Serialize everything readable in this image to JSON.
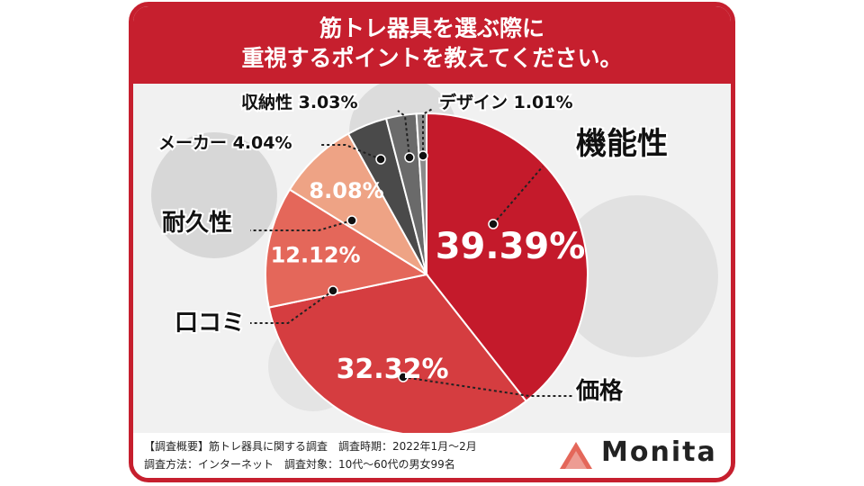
{
  "header": {
    "title_line1": "筋トレ器具を選ぶ際に",
    "title_line2": "重視するポイントを教えてください。"
  },
  "chart_data": {
    "type": "pie",
    "title": "筋トレ器具を選ぶ際に重視するポイントを教えてください。",
    "slices": [
      {
        "label": "機能性",
        "value": 39.39,
        "value_label": "39.39%",
        "color": "#c41a2b"
      },
      {
        "label": "価格",
        "value": 32.32,
        "value_label": "32.32%",
        "color": "#d53d40"
      },
      {
        "label": "口コミ",
        "value": 12.12,
        "value_label": "12.12%",
        "color": "#e4675a"
      },
      {
        "label": "耐久性",
        "value": 8.08,
        "value_label": "8.08%",
        "color": "#eea385"
      },
      {
        "label": "メーカー",
        "value": 4.04,
        "value_label": "4.04%",
        "color": "#4a4a4a"
      },
      {
        "label": "収納性",
        "value": 3.03,
        "value_label": "3.03%",
        "color": "#6a6a6a"
      },
      {
        "label": "デザイン",
        "value": 1.01,
        "value_label": "1.01%",
        "color": "#8c8c8c"
      }
    ]
  },
  "footer": {
    "line1": "【調査概要】筋トレ器具に関する調査　調査時期：2022年1月～2月",
    "line2": "調査方法：インターネット　調査対象：10代～60代の男女99名"
  },
  "brand": {
    "name": "Monita",
    "color": "#e4675a"
  },
  "colors": {
    "frame": "#c61f2e"
  }
}
